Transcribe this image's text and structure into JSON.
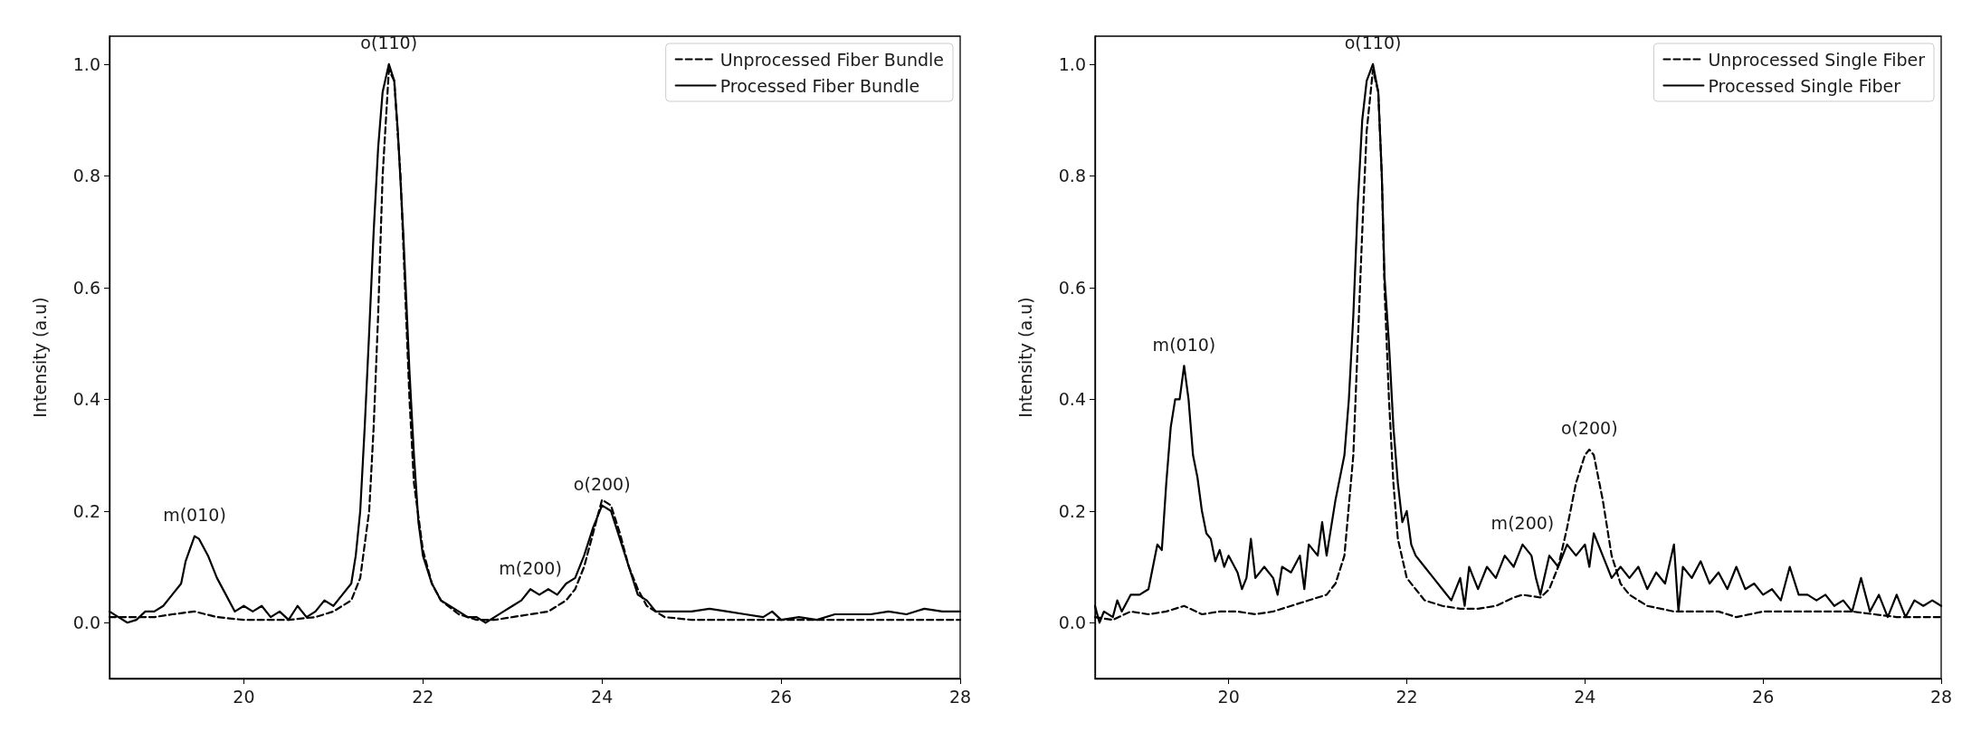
{
  "chart_data": [
    {
      "type": "line",
      "ylabel": "Intensity (a.u)",
      "xlim": [
        18.5,
        28
      ],
      "ylim": [
        -0.1,
        1.05
      ],
      "xticks": [
        20,
        22,
        24,
        26,
        28
      ],
      "yticks": [
        {
          "value": 0,
          "label": "0.0"
        },
        {
          "value": 0.2,
          "label": "0.2"
        },
        {
          "value": 0.4,
          "label": "0.4"
        },
        {
          "value": 0.6,
          "label": "0.6"
        },
        {
          "value": 0.8,
          "label": "0.8"
        },
        {
          "value": 1,
          "label": "1.0"
        }
      ],
      "grid": false,
      "legend": "top right",
      "marker": "none",
      "annotations": [
        {
          "text": "o(110)",
          "x": 21.62,
          "y": 1.0
        },
        {
          "text": "m(010)",
          "x": 19.45,
          "y": 0.155
        },
        {
          "text": "m(200)",
          "x": 23.2,
          "y": 0.06
        },
        {
          "text": "o(200)",
          "x": 24.0,
          "y": 0.21
        }
      ],
      "series": [
        {
          "name": "Unprocessed Fiber Bundle",
          "color": "#000000",
          "line_style": "dashed",
          "x": [
            18.5,
            19.0,
            19.2,
            19.45,
            19.7,
            20.0,
            20.5,
            20.8,
            21.0,
            21.2,
            21.3,
            21.4,
            21.45,
            21.5,
            21.55,
            21.62,
            21.68,
            21.75,
            21.8,
            21.85,
            21.9,
            22.0,
            22.1,
            22.2,
            22.4,
            22.6,
            22.8,
            23.0,
            23.2,
            23.4,
            23.6,
            23.7,
            23.8,
            23.9,
            24.0,
            24.1,
            24.2,
            24.3,
            24.4,
            24.5,
            24.7,
            25.0,
            26.0,
            27.0,
            28.0
          ],
          "values": [
            0.01,
            0.01,
            0.015,
            0.02,
            0.01,
            0.005,
            0.005,
            0.01,
            0.02,
            0.04,
            0.08,
            0.2,
            0.35,
            0.55,
            0.8,
            0.99,
            0.97,
            0.8,
            0.6,
            0.4,
            0.25,
            0.13,
            0.07,
            0.04,
            0.015,
            0.005,
            0.005,
            0.01,
            0.015,
            0.02,
            0.04,
            0.06,
            0.1,
            0.16,
            0.22,
            0.21,
            0.16,
            0.1,
            0.06,
            0.03,
            0.01,
            0.005,
            0.005,
            0.005,
            0.005
          ]
        },
        {
          "name": "Processed Fiber Bundle",
          "color": "#000000",
          "line_style": "solid",
          "x": [
            18.5,
            18.6,
            18.7,
            18.8,
            18.9,
            19.0,
            19.1,
            19.2,
            19.3,
            19.35,
            19.45,
            19.5,
            19.6,
            19.7,
            19.8,
            19.9,
            20.0,
            20.1,
            20.2,
            20.3,
            20.4,
            20.5,
            20.6,
            20.7,
            20.8,
            20.9,
            21.0,
            21.1,
            21.2,
            21.25,
            21.3,
            21.35,
            21.4,
            21.45,
            21.5,
            21.55,
            21.62,
            21.68,
            21.72,
            21.78,
            21.85,
            21.9,
            21.95,
            22.0,
            22.1,
            22.2,
            22.3,
            22.4,
            22.5,
            22.6,
            22.7,
            22.8,
            22.9,
            23.0,
            23.1,
            23.2,
            23.3,
            23.4,
            23.5,
            23.6,
            23.7,
            23.8,
            23.9,
            24.0,
            24.1,
            24.2,
            24.3,
            24.4,
            24.5,
            24.6,
            24.8,
            25.0,
            25.2,
            25.4,
            25.6,
            25.8,
            25.9,
            26.0,
            26.2,
            26.4,
            26.6,
            26.8,
            27.0,
            27.2,
            27.4,
            27.6,
            27.8,
            28.0
          ],
          "values": [
            0.02,
            0.01,
            0.0,
            0.005,
            0.02,
            0.02,
            0.03,
            0.05,
            0.07,
            0.11,
            0.155,
            0.15,
            0.12,
            0.08,
            0.05,
            0.02,
            0.03,
            0.02,
            0.03,
            0.01,
            0.02,
            0.005,
            0.03,
            0.01,
            0.02,
            0.04,
            0.03,
            0.05,
            0.07,
            0.12,
            0.2,
            0.35,
            0.52,
            0.7,
            0.85,
            0.95,
            1.0,
            0.97,
            0.88,
            0.7,
            0.45,
            0.3,
            0.18,
            0.12,
            0.07,
            0.04,
            0.03,
            0.02,
            0.01,
            0.01,
            0.0,
            0.01,
            0.02,
            0.03,
            0.04,
            0.06,
            0.05,
            0.06,
            0.05,
            0.07,
            0.08,
            0.12,
            0.17,
            0.21,
            0.2,
            0.15,
            0.1,
            0.05,
            0.04,
            0.02,
            0.02,
            0.02,
            0.025,
            0.02,
            0.015,
            0.01,
            0.02,
            0.005,
            0.01,
            0.005,
            0.015,
            0.015,
            0.015,
            0.02,
            0.015,
            0.025,
            0.02,
            0.02
          ]
        }
      ]
    },
    {
      "type": "line",
      "ylabel": "Intensity (a.u)",
      "xlim": [
        18.5,
        28
      ],
      "ylim": [
        -0.1,
        1.05
      ],
      "xticks": [
        20,
        22,
        24,
        26,
        28
      ],
      "yticks": [
        {
          "value": 0,
          "label": "0.0"
        },
        {
          "value": 0.2,
          "label": "0.2"
        },
        {
          "value": 0.4,
          "label": "0.4"
        },
        {
          "value": 0.6,
          "label": "0.6"
        },
        {
          "value": 0.8,
          "label": "0.8"
        },
        {
          "value": 1,
          "label": "1.0"
        }
      ],
      "grid": false,
      "legend": "top right",
      "marker": "none",
      "annotations": [
        {
          "text": "o(110)",
          "x": 21.62,
          "y": 1.0
        },
        {
          "text": "m(010)",
          "x": 19.5,
          "y": 0.46
        },
        {
          "text": "m(200)",
          "x": 23.3,
          "y": 0.14
        },
        {
          "text": "o(200)",
          "x": 24.05,
          "y": 0.31
        }
      ],
      "series": [
        {
          "name": "Unprocessed Single Fiber",
          "color": "#000000",
          "line_style": "dashed",
          "x": [
            18.5,
            18.7,
            18.9,
            19.1,
            19.3,
            19.5,
            19.7,
            19.9,
            20.1,
            20.3,
            20.5,
            20.7,
            20.9,
            21.1,
            21.2,
            21.3,
            21.4,
            21.45,
            21.5,
            21.55,
            21.62,
            21.68,
            21.72,
            21.75,
            21.8,
            21.85,
            21.9,
            22.0,
            22.1,
            22.2,
            22.4,
            22.6,
            22.8,
            23.0,
            23.2,
            23.3,
            23.5,
            23.6,
            23.7,
            23.8,
            23.9,
            24.0,
            24.05,
            24.1,
            24.2,
            24.3,
            24.4,
            24.5,
            24.7,
            25.0,
            25.5,
            25.7,
            26.0,
            26.5,
            27.0,
            27.5,
            28.0
          ],
          "values": [
            0.01,
            0.005,
            0.02,
            0.015,
            0.02,
            0.03,
            0.015,
            0.02,
            0.02,
            0.015,
            0.02,
            0.03,
            0.04,
            0.05,
            0.07,
            0.12,
            0.3,
            0.5,
            0.7,
            0.88,
            0.99,
            0.95,
            0.8,
            0.6,
            0.4,
            0.25,
            0.15,
            0.08,
            0.06,
            0.04,
            0.03,
            0.025,
            0.025,
            0.03,
            0.045,
            0.05,
            0.045,
            0.06,
            0.1,
            0.17,
            0.25,
            0.3,
            0.31,
            0.3,
            0.22,
            0.12,
            0.07,
            0.05,
            0.03,
            0.02,
            0.02,
            0.01,
            0.02,
            0.02,
            0.02,
            0.01,
            0.01
          ]
        },
        {
          "name": "Processed Single Fiber",
          "color": "#000000",
          "line_style": "solid",
          "x": [
            18.5,
            18.55,
            18.6,
            18.7,
            18.75,
            18.8,
            18.9,
            19.0,
            19.1,
            19.15,
            19.2,
            19.25,
            19.3,
            19.35,
            19.4,
            19.45,
            19.5,
            19.55,
            19.6,
            19.65,
            19.7,
            19.75,
            19.8,
            19.85,
            19.9,
            19.95,
            20.0,
            20.1,
            20.15,
            20.2,
            20.25,
            20.3,
            20.4,
            20.5,
            20.55,
            20.6,
            20.7,
            20.8,
            20.85,
            20.9,
            21.0,
            21.05,
            21.1,
            21.2,
            21.3,
            21.35,
            21.4,
            21.45,
            21.5,
            21.55,
            21.62,
            21.68,
            21.72,
            21.75,
            21.8,
            21.85,
            21.9,
            21.95,
            22.0,
            22.05,
            22.1,
            22.2,
            22.3,
            22.4,
            22.5,
            22.6,
            22.65,
            22.7,
            22.8,
            22.9,
            23.0,
            23.1,
            23.2,
            23.3,
            23.4,
            23.45,
            23.5,
            23.6,
            23.7,
            23.8,
            23.9,
            24.0,
            24.05,
            24.1,
            24.2,
            24.3,
            24.4,
            24.5,
            24.6,
            24.7,
            24.8,
            24.9,
            25.0,
            25.05,
            25.1,
            25.2,
            25.3,
            25.4,
            25.5,
            25.6,
            25.7,
            25.8,
            25.9,
            26.0,
            26.1,
            26.2,
            26.3,
            26.4,
            26.5,
            26.6,
            26.7,
            26.8,
            26.9,
            27.0,
            27.1,
            27.2,
            27.3,
            27.4,
            27.5,
            27.6,
            27.7,
            27.8,
            27.9,
            28.0
          ],
          "values": [
            0.03,
            0.0,
            0.02,
            0.01,
            0.04,
            0.02,
            0.05,
            0.05,
            0.06,
            0.1,
            0.14,
            0.13,
            0.25,
            0.35,
            0.4,
            0.4,
            0.46,
            0.4,
            0.3,
            0.26,
            0.2,
            0.16,
            0.15,
            0.11,
            0.13,
            0.1,
            0.12,
            0.09,
            0.06,
            0.08,
            0.15,
            0.08,
            0.1,
            0.08,
            0.05,
            0.1,
            0.09,
            0.12,
            0.06,
            0.14,
            0.12,
            0.18,
            0.12,
            0.22,
            0.3,
            0.4,
            0.55,
            0.75,
            0.9,
            0.97,
            1.0,
            0.95,
            0.8,
            0.62,
            0.5,
            0.35,
            0.25,
            0.18,
            0.2,
            0.14,
            0.12,
            0.1,
            0.08,
            0.06,
            0.04,
            0.08,
            0.03,
            0.1,
            0.06,
            0.1,
            0.08,
            0.12,
            0.1,
            0.14,
            0.12,
            0.08,
            0.05,
            0.12,
            0.1,
            0.14,
            0.12,
            0.14,
            0.1,
            0.16,
            0.12,
            0.08,
            0.1,
            0.08,
            0.1,
            0.06,
            0.09,
            0.07,
            0.14,
            0.02,
            0.1,
            0.08,
            0.11,
            0.07,
            0.09,
            0.06,
            0.1,
            0.06,
            0.07,
            0.05,
            0.06,
            0.04,
            0.1,
            0.05,
            0.05,
            0.04,
            0.05,
            0.03,
            0.04,
            0.02,
            0.08,
            0.02,
            0.05,
            0.01,
            0.05,
            0.01,
            0.04,
            0.03,
            0.04,
            0.03
          ]
        }
      ]
    }
  ]
}
